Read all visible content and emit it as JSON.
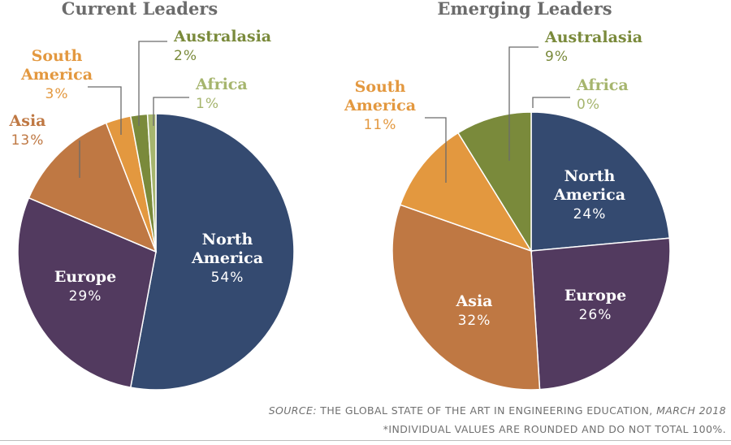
{
  "colors": {
    "North America": "#344a70",
    "Europe": "#523a5f",
    "Asia": "#bf7843",
    "South America": "#e3983f",
    "Australasia": "#7a8a3b",
    "Africa": "#a6b56e"
  },
  "chart_data": [
    {
      "type": "pie",
      "title": "Current Leaders",
      "slices": [
        {
          "name": "North America",
          "value": 54,
          "label": "54%"
        },
        {
          "name": "Europe",
          "value": 29,
          "label": "29%"
        },
        {
          "name": "Asia",
          "value": 13,
          "label": "13%"
        },
        {
          "name": "South America",
          "value": 3,
          "label": "3%"
        },
        {
          "name": "Australasia",
          "value": 2,
          "label": "2%"
        },
        {
          "name": "Africa",
          "value": 1,
          "label": "1%"
        }
      ]
    },
    {
      "type": "pie",
      "title": "Emerging Leaders",
      "slices": [
        {
          "name": "North America",
          "value": 24,
          "label": "24%"
        },
        {
          "name": "Europe",
          "value": 26,
          "label": "26%"
        },
        {
          "name": "Asia",
          "value": 32,
          "label": "32%"
        },
        {
          "name": "South America",
          "value": 11,
          "label": "11%"
        },
        {
          "name": "Australasia",
          "value": 9,
          "label": "9%"
        },
        {
          "name": "Africa",
          "value": 0,
          "label": "0%"
        }
      ]
    }
  ],
  "footer": {
    "source_prefix": "SOURCE:",
    "source_text": " THE GLOBAL STATE OF THE ART IN ENGINEERING EDUCATION, ",
    "source_date": "MARCH 2018",
    "note": "*INDIVIDUAL VALUES ARE ROUNDED AND DO NOT TOTAL 100%."
  }
}
